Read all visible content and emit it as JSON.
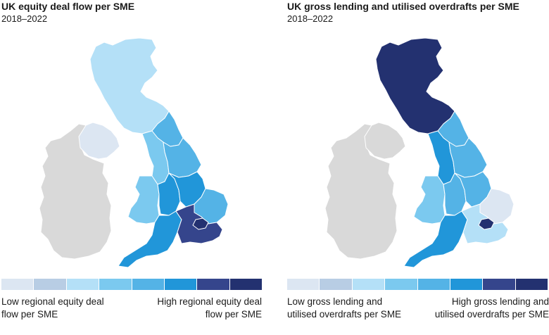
{
  "scale_colors": [
    "#dce6f2",
    "#b8cde4",
    "#b4e0f7",
    "#7bc9ef",
    "#54b3e6",
    "#2196d9",
    "#35458c",
    "#233170"
  ],
  "ireland_color": "#d9d9d9",
  "maps": [
    {
      "title": "UK equity deal flow per SME",
      "subtitle": "2018–2022",
      "legend_low": "Low regional equity deal flow per SME",
      "legend_high": "High regional equity deal flow per SME",
      "regions": {
        "scotland": 2,
        "northern_ireland": 0,
        "north_east": 4,
        "north_west": 3,
        "yorkshire": 4,
        "wales": 3,
        "west_midlands": 5,
        "east_midlands": 5,
        "east": 4,
        "south_west": 5,
        "london": 7,
        "south_east": 6
      }
    },
    {
      "title": "UK gross lending and utilised overdrafts per SME",
      "subtitle": "2018–2022",
      "legend_low": "Low gross lending and utilised overdrafts per SME",
      "legend_high": "High gross lending and utilised overdrafts per SME",
      "regions": {
        "scotland": 7,
        "northern_ireland": null,
        "north_east": 4,
        "north_west": 5,
        "yorkshire": 4,
        "wales": 3,
        "west_midlands": 4,
        "east_midlands": 4,
        "east": 0,
        "south_west": 5,
        "london": 7,
        "south_east": 2
      }
    }
  ]
}
